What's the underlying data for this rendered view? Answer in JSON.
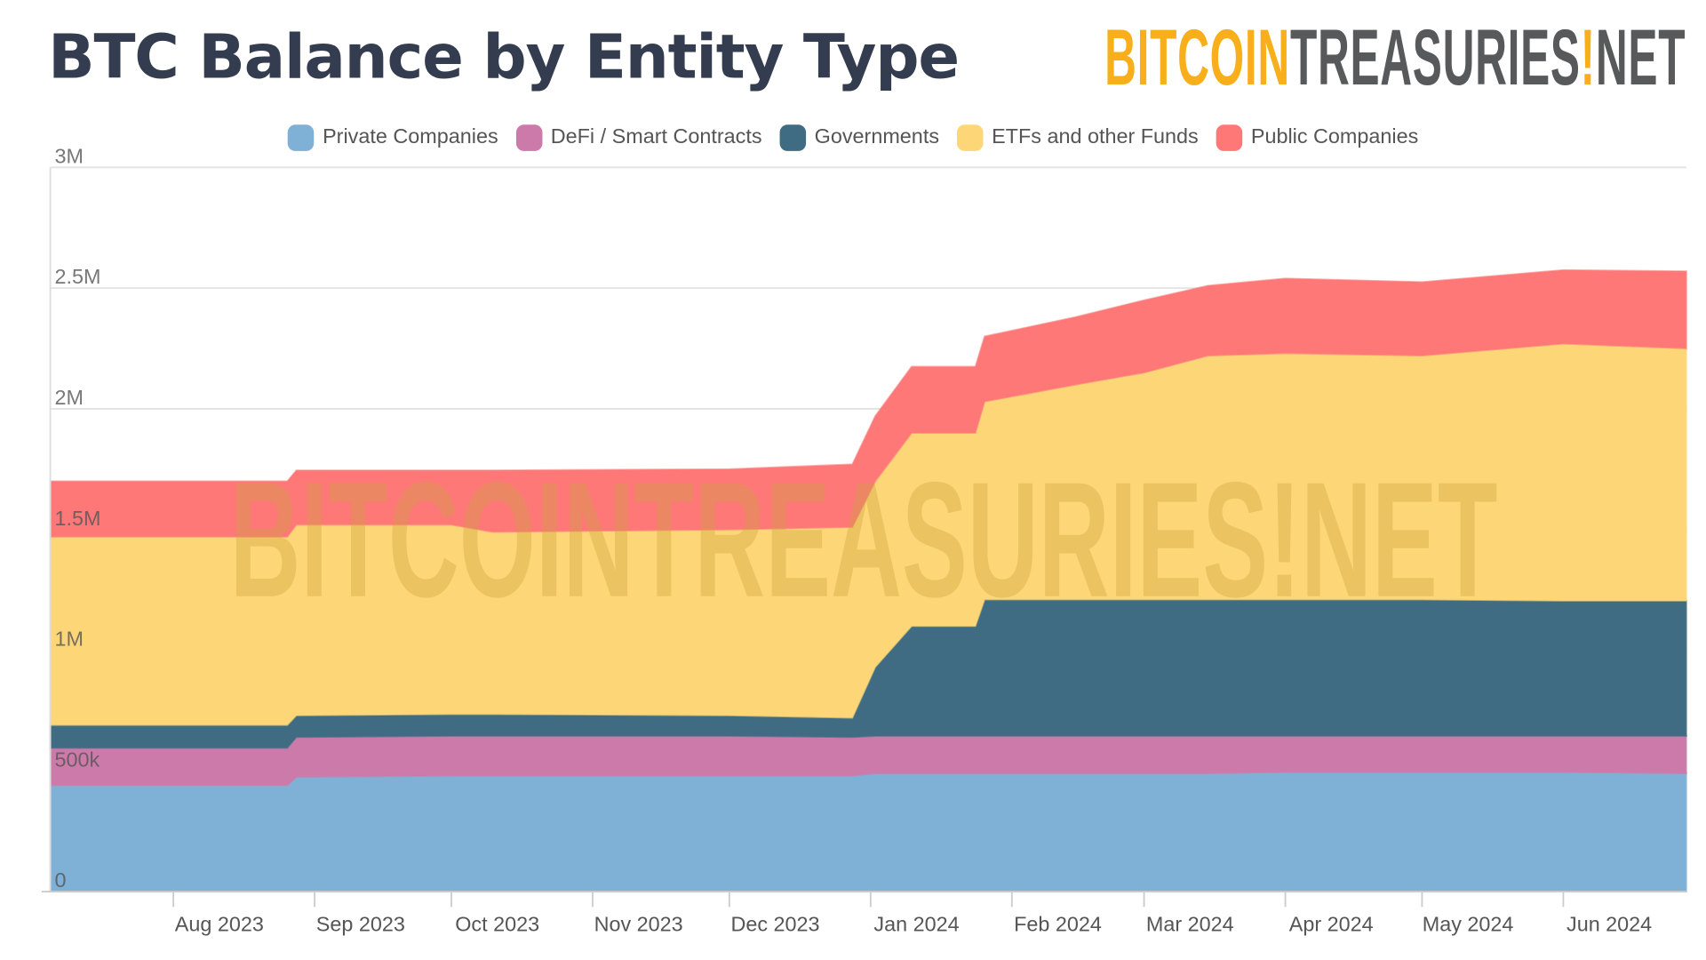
{
  "title": "BTC Balance by Entity Type",
  "logo": {
    "part1": "BITCOIN",
    "part2": "TREASURIES",
    "part3": "NET",
    "colors": {
      "bitcoin": "#f9ae1b",
      "treasuries": "#58595b"
    }
  },
  "chart_data": {
    "type": "area",
    "stacked": true,
    "title": "BTC Balance by Entity Type",
    "xlabel": "",
    "ylabel": "",
    "ylim": [
      0,
      3000000
    ],
    "yticks": [
      0,
      500000,
      1000000,
      1500000,
      2000000,
      2500000,
      3000000
    ],
    "ytick_labels": [
      "0",
      "500k",
      "1M",
      "1.5M",
      "2M",
      "2.5M",
      "3M"
    ],
    "xticks": [
      "2023-08-01",
      "2023-09-01",
      "2023-10-01",
      "2023-11-01",
      "2023-12-01",
      "2024-01-01",
      "2024-02-01",
      "2024-03-01",
      "2024-04-01",
      "2024-05-01",
      "2024-06-01"
    ],
    "xtick_labels": [
      "Aug 2023",
      "Sep 2023",
      "Oct 2023",
      "Nov 2023",
      "Dec 2023",
      "Jan 2024",
      "Feb 2024",
      "Mar 2024",
      "Apr 2024",
      "May 2024",
      "Jun 2024"
    ],
    "xlim": [
      "2023-07-05",
      "2024-06-28"
    ],
    "grid": true,
    "legend_position": "top",
    "x": [
      "2023-07-05",
      "2023-08-26",
      "2023-08-28",
      "2023-10-01",
      "2023-10-10",
      "2023-12-01",
      "2023-12-28",
      "2024-01-02",
      "2024-01-10",
      "2024-01-24",
      "2024-01-26",
      "2024-02-15",
      "2024-03-01",
      "2024-03-15",
      "2024-04-01",
      "2024-05-01",
      "2024-06-01",
      "2024-06-28"
    ],
    "series": [
      {
        "name": "Private Companies",
        "color": "#7fb0d6",
        "values": [
          440000,
          440000,
          475000,
          480000,
          480000,
          480000,
          480000,
          490000,
          490000,
          490000,
          490000,
          490000,
          490000,
          490000,
          495000,
          495000,
          495000,
          490000
        ]
      },
      {
        "name": "DeFi / Smart Contracts",
        "color": "#cc7aaa",
        "values": [
          155000,
          155000,
          165000,
          165000,
          165000,
          165000,
          160000,
          155000,
          155000,
          155000,
          155000,
          155000,
          155000,
          155000,
          150000,
          150000,
          150000,
          155000
        ]
      },
      {
        "name": "Governments",
        "color": "#406c83",
        "values": [
          95000,
          95000,
          90000,
          90000,
          90000,
          85000,
          80000,
          285000,
          455000,
          455000,
          565000,
          565000,
          565000,
          565000,
          565000,
          565000,
          560000,
          560000
        ]
      },
      {
        "name": "ETFs and other Funds",
        "color": "#fdd677",
        "values": [
          780000,
          780000,
          790000,
          785000,
          755000,
          770000,
          790000,
          770000,
          800000,
          800000,
          820000,
          890000,
          940000,
          1010000,
          1020000,
          1010000,
          1065000,
          1045000
        ]
      },
      {
        "name": "Public Companies",
        "color": "#fe7878",
        "values": [
          230000,
          230000,
          225000,
          225000,
          255000,
          250000,
          260000,
          270000,
          275000,
          275000,
          270000,
          280000,
          300000,
          290000,
          310000,
          305000,
          305000,
          320000
        ]
      }
    ],
    "watermark": "BITCOINTREASURIES!NET"
  }
}
